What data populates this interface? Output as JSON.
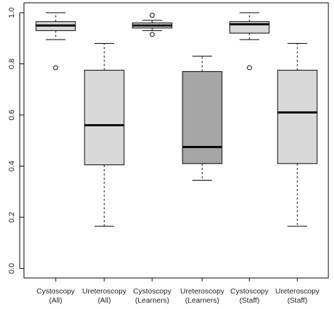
{
  "chart_data": {
    "type": "boxplot",
    "title": "",
    "xlabel": "",
    "ylabel": "",
    "ylim": [
      0.0,
      1.0
    ],
    "yticks": [
      "0.0",
      "0.2",
      "0.4",
      "0.6",
      "0.8",
      "1.0"
    ],
    "grid": false,
    "categories": [
      [
        "Cystoscopy",
        "(All)"
      ],
      [
        "Ureteroscopy",
        "(All)"
      ],
      [
        "Cystoscopy",
        "(Learners)"
      ],
      [
        "Ureteroscopy",
        "(Learners)"
      ],
      [
        "Cystoscopy",
        "(Staff)"
      ],
      [
        "Ureteroscopy",
        "(Staff)"
      ]
    ],
    "boxes": [
      {
        "whisker_low": 0.895,
        "q1": 0.93,
        "median": 0.95,
        "q3": 0.965,
        "whisker_high": 1.0,
        "outliers": [
          0.785
        ],
        "fill": "#d9d9d9"
      },
      {
        "whisker_low": 0.165,
        "q1": 0.405,
        "median": 0.56,
        "q3": 0.775,
        "whisker_high": 0.88,
        "outliers": [],
        "fill": "#d9d9d9"
      },
      {
        "whisker_low": 0.93,
        "q1": 0.94,
        "median": 0.95,
        "q3": 0.96,
        "whisker_high": 0.97,
        "outliers": [
          0.99,
          0.915
        ],
        "fill": "#d9d9d9"
      },
      {
        "whisker_low": 0.345,
        "q1": 0.41,
        "median": 0.475,
        "q3": 0.77,
        "whisker_high": 0.83,
        "outliers": [],
        "fill": "#a6a6a6"
      },
      {
        "whisker_low": 0.895,
        "q1": 0.92,
        "median": 0.955,
        "q3": 0.965,
        "whisker_high": 1.0,
        "outliers": [
          0.785
        ],
        "fill": "#d9d9d9"
      },
      {
        "whisker_low": 0.165,
        "q1": 0.41,
        "median": 0.61,
        "q3": 0.775,
        "whisker_high": 0.88,
        "outliers": [],
        "fill": "#d9d9d9"
      }
    ]
  }
}
